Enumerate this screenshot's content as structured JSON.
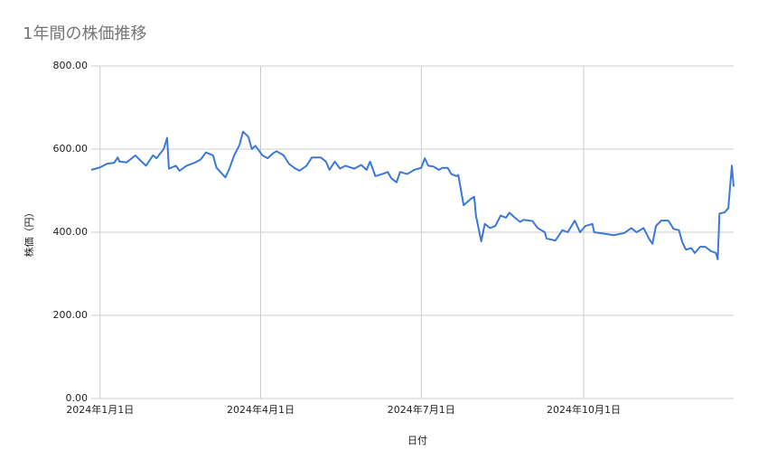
{
  "chart_data": {
    "type": "line",
    "title": "1年間の株価推移",
    "x_label": "日付",
    "y_label": "株価（円）",
    "x": [
      "2023-12-27",
      "2024-01-01",
      "2024-01-05",
      "2024-01-09",
      "2024-01-11",
      "2024-01-12",
      "2024-01-16",
      "2024-01-19",
      "2024-01-21",
      "2024-01-24",
      "2024-01-27",
      "2024-01-31",
      "2024-02-02",
      "2024-02-06",
      "2024-02-08",
      "2024-02-09",
      "2024-02-13",
      "2024-02-15",
      "2024-02-19",
      "2024-02-24",
      "2024-02-27",
      "2024-03-01",
      "2024-03-05",
      "2024-03-07",
      "2024-03-12",
      "2024-03-14",
      "2024-03-17",
      "2024-03-20",
      "2024-03-22",
      "2024-03-25",
      "2024-03-27",
      "2024-03-29",
      "2024-04-02",
      "2024-04-05",
      "2024-04-08",
      "2024-04-10",
      "2024-04-14",
      "2024-04-17",
      "2024-04-20",
      "2024-04-23",
      "2024-04-27",
      "2024-04-30",
      "2024-05-05",
      "2024-05-08",
      "2024-05-10",
      "2024-05-13",
      "2024-05-16",
      "2024-05-19",
      "2024-05-24",
      "2024-05-28",
      "2024-05-31",
      "2024-06-02",
      "2024-06-05",
      "2024-06-09",
      "2024-06-12",
      "2024-06-14",
      "2024-06-17",
      "2024-06-19",
      "2024-06-23",
      "2024-06-27",
      "2024-07-01",
      "2024-07-03",
      "2024-07-05",
      "2024-07-08",
      "2024-07-11",
      "2024-07-13",
      "2024-07-16",
      "2024-07-18",
      "2024-07-21",
      "2024-07-22",
      "2024-07-25",
      "2024-07-29",
      "2024-07-31",
      "2024-08-01",
      "2024-08-04",
      "2024-08-06",
      "2024-08-09",
      "2024-08-12",
      "2024-08-15",
      "2024-08-18",
      "2024-08-20",
      "2024-08-23",
      "2024-08-26",
      "2024-08-28",
      "2024-09-02",
      "2024-09-05",
      "2024-09-09",
      "2024-09-10",
      "2024-09-15",
      "2024-09-19",
      "2024-09-22",
      "2024-09-26",
      "2024-09-29",
      "2024-10-02",
      "2024-10-06",
      "2024-10-07",
      "2024-10-12",
      "2024-10-18",
      "2024-10-24",
      "2024-10-28",
      "2024-10-31",
      "2024-11-04",
      "2024-11-07",
      "2024-11-09",
      "2024-11-11",
      "2024-11-14",
      "2024-11-18",
      "2024-11-21",
      "2024-11-24",
      "2024-11-26",
      "2024-11-28",
      "2024-12-01",
      "2024-12-03",
      "2024-12-06",
      "2024-12-09",
      "2024-12-12",
      "2024-12-15",
      "2024-12-16",
      "2024-12-17",
      "2024-12-20",
      "2024-12-22",
      "2024-12-24",
      "2024-12-25"
    ],
    "series": [
      {
        "name": "株価",
        "color": "#3c78d8",
        "values": [
          550,
          556,
          565,
          567,
          580,
          570,
          568,
          578,
          585,
          572,
          560,
          585,
          578,
          600,
          627,
          553,
          560,
          548,
          560,
          568,
          575,
          592,
          585,
          555,
          532,
          550,
          585,
          610,
          642,
          630,
          600,
          608,
          585,
          578,
          590,
          595,
          585,
          565,
          555,
          548,
          560,
          580,
          580,
          570,
          550,
          570,
          553,
          560,
          553,
          562,
          550,
          570,
          535,
          540,
          545,
          530,
          520,
          545,
          540,
          550,
          555,
          578,
          560,
          558,
          550,
          555,
          555,
          540,
          535,
          538,
          465,
          480,
          485,
          440,
          378,
          420,
          410,
          415,
          440,
          435,
          447,
          435,
          425,
          430,
          427,
          410,
          400,
          385,
          380,
          405,
          400,
          428,
          400,
          415,
          420,
          400,
          397,
          393,
          398,
          410,
          400,
          410,
          385,
          372,
          415,
          428,
          428,
          408,
          405,
          375,
          358,
          362,
          350,
          365,
          365,
          355,
          350,
          335,
          445,
          448,
          458,
          560,
          510
        ]
      }
    ],
    "xlim": [
      "2023-12-27",
      "2024-12-25"
    ],
    "xticks": [
      {
        "value": "2024-01-01",
        "label": "2024年1月1日"
      },
      {
        "value": "2024-04-01",
        "label": "2024年4月1日"
      },
      {
        "value": "2024-07-01",
        "label": "2024年7月1日"
      },
      {
        "value": "2024-10-01",
        "label": "2024年10月1日"
      }
    ],
    "ylim": [
      0,
      800
    ],
    "yticks": [
      {
        "value": 0,
        "label": "0.00"
      },
      {
        "value": 200,
        "label": "200.00"
      },
      {
        "value": 400,
        "label": "400.00"
      },
      {
        "value": 600,
        "label": "600.00"
      },
      {
        "value": 800,
        "label": "800.00"
      }
    ],
    "grid": true
  }
}
